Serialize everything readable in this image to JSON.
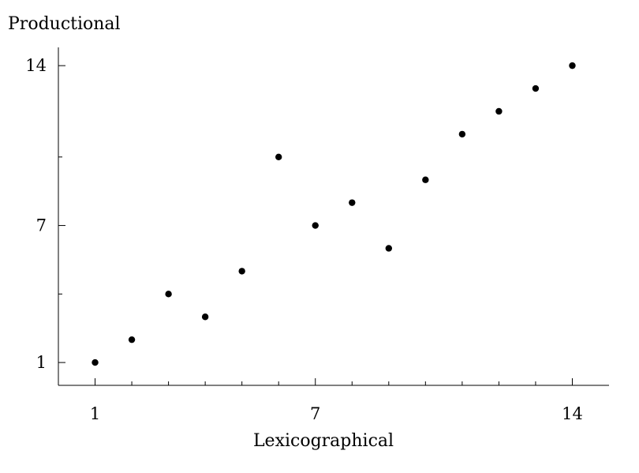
{
  "chart_data": {
    "type": "scatter",
    "title": "",
    "xlabel": "Lexicographical",
    "ylabel": "Productional",
    "xlim": [
      0,
      15
    ],
    "ylim": [
      0,
      14.8
    ],
    "x_tick_labels": [
      1,
      7,
      14
    ],
    "y_tick_labels": [
      1,
      7,
      14
    ],
    "x_minor_ticks": [
      2,
      3,
      4,
      5,
      6,
      8,
      9,
      10,
      11,
      12,
      13
    ],
    "y_minor_ticks": [
      4,
      10
    ],
    "grid": false,
    "marker_color": "#000000",
    "series": [
      {
        "points": [
          [
            1,
            1
          ],
          [
            2,
            2
          ],
          [
            3,
            4
          ],
          [
            4,
            3
          ],
          [
            5,
            5
          ],
          [
            6,
            10
          ],
          [
            7,
            7
          ],
          [
            8,
            8
          ],
          [
            9,
            6
          ],
          [
            10,
            9
          ],
          [
            11,
            11
          ],
          [
            12,
            12
          ],
          [
            13,
            13
          ],
          [
            14,
            14
          ]
        ]
      }
    ]
  }
}
